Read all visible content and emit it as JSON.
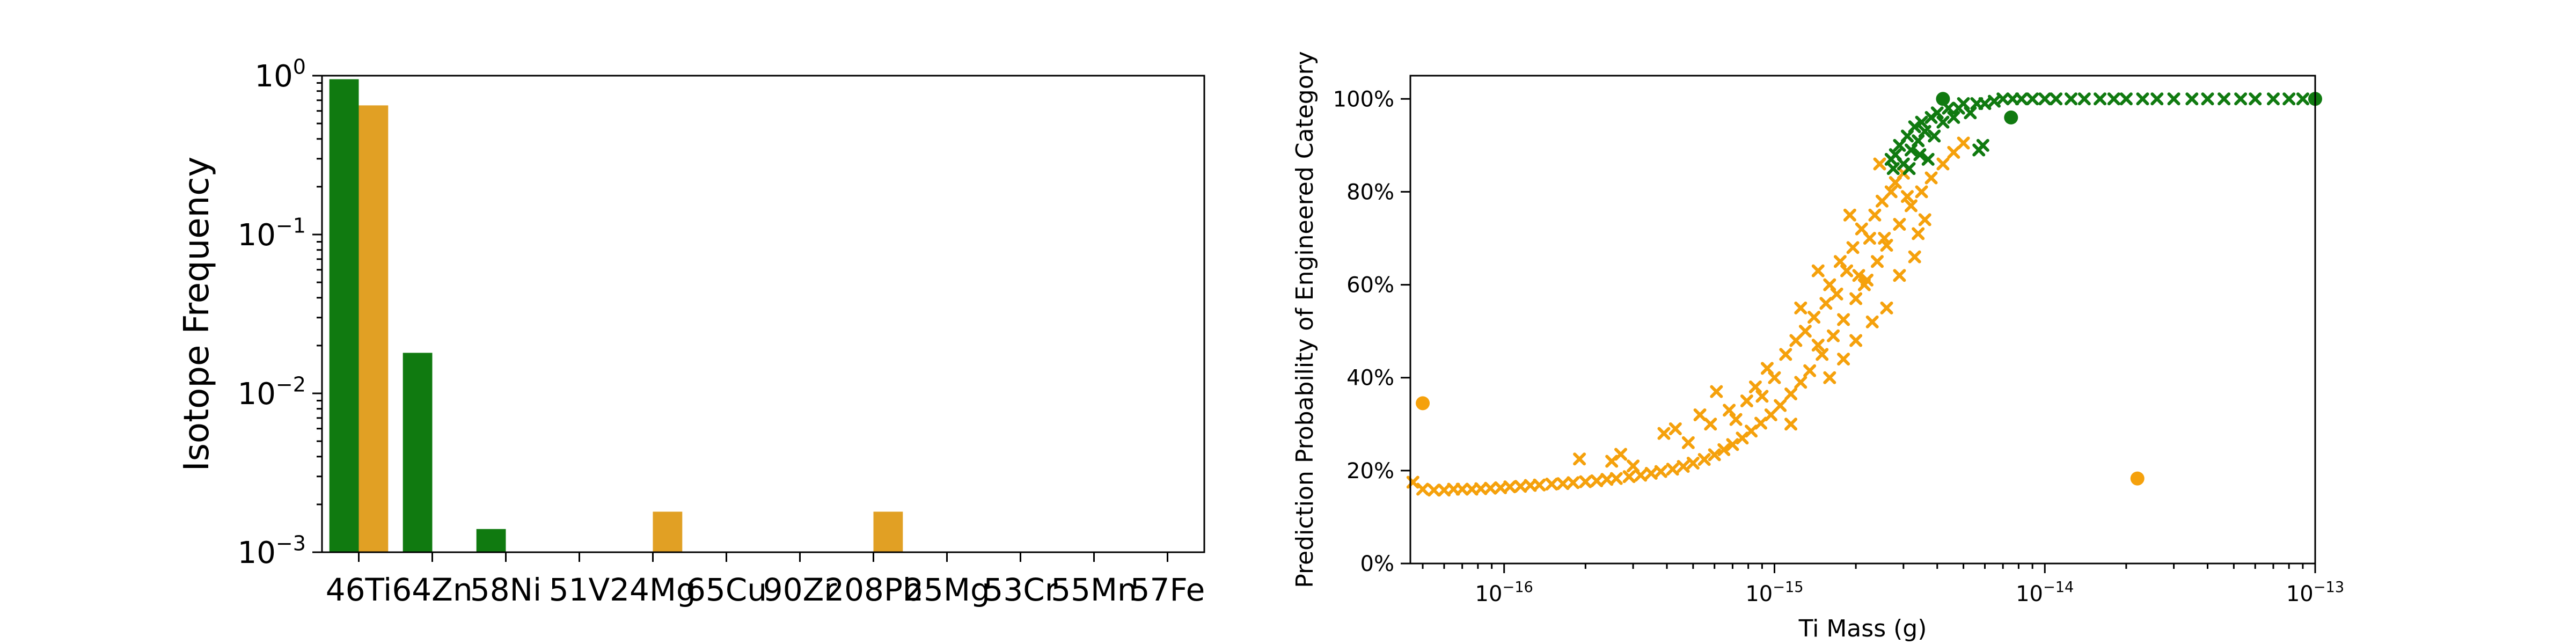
{
  "chart_data": [
    {
      "type": "bar",
      "ylabel": "Isotope Frequency",
      "yscale": "log",
      "ylim": [
        0.001,
        1
      ],
      "y_ticks": [
        {
          "value": 1,
          "base": "10",
          "exp": "0"
        },
        {
          "value": 0.1,
          "base": "10",
          "exp": "−1"
        },
        {
          "value": 0.01,
          "base": "10",
          "exp": "−2"
        },
        {
          "value": 0.001,
          "base": "10",
          "exp": "−3"
        }
      ],
      "categories": [
        "46Ti",
        "64Zn",
        "58Ni",
        "51V",
        "24Mg",
        "65Cu",
        "90Zr",
        "208Pb",
        "25Mg",
        "53Cr",
        "55Mn",
        "57Fe"
      ],
      "series": [
        {
          "color": "#107a10",
          "values": [
            0.95,
            0.018,
            0.0014,
            null,
            null,
            null,
            null,
            null,
            null,
            null,
            null,
            null
          ]
        },
        {
          "color": "#e1a024",
          "values": [
            0.65,
            null,
            null,
            null,
            0.0018,
            null,
            null,
            0.0018,
            null,
            null,
            null,
            null
          ]
        }
      ],
      "legend": "none",
      "grid": false
    },
    {
      "type": "scatter",
      "xlabel": "Ti Mass (g)",
      "ylabel": "Prediction Probability of Engineered Category",
      "xscale": "log",
      "xlim": [
        4.5e-17,
        1e-13
      ],
      "ylim": [
        0,
        1.05
      ],
      "x_ticks": [
        {
          "value": 1e-16,
          "base": "10",
          "exp": "−16"
        },
        {
          "value": 1e-15,
          "base": "10",
          "exp": "−15"
        },
        {
          "value": 1e-14,
          "base": "10",
          "exp": "−14"
        },
        {
          "value": 1e-13,
          "base": "10",
          "exp": "−13"
        }
      ],
      "y_ticks": [
        {
          "value": 0,
          "label": "0%"
        },
        {
          "value": 0.2,
          "label": "20%"
        },
        {
          "value": 0.4,
          "label": "40%"
        },
        {
          "value": 0.6,
          "label": "60%"
        },
        {
          "value": 0.8,
          "label": "80%"
        },
        {
          "value": 1.0,
          "label": "100%"
        }
      ],
      "series": [
        {
          "color": "#f5a10c",
          "marker": "x",
          "points": [
            [
              4.6e-17,
              0.175
            ],
            [
              5e-17,
              0.16
            ],
            [
              5.5e-17,
              0.158
            ],
            [
              6e-17,
              0.158
            ],
            [
              6.5e-17,
              0.16
            ],
            [
              7e-17,
              0.16
            ],
            [
              7.6e-17,
              0.16
            ],
            [
              8.2e-17,
              0.161
            ],
            [
              8.9e-17,
              0.162
            ],
            [
              9.7e-17,
              0.163
            ],
            [
              1.05e-16,
              0.165
            ],
            [
              1.15e-16,
              0.166
            ],
            [
              1.25e-16,
              0.168
            ],
            [
              1.35e-16,
              0.169
            ],
            [
              1.5e-16,
              0.171
            ],
            [
              1.65e-16,
              0.172
            ],
            [
              1.8e-16,
              0.174
            ],
            [
              2e-16,
              0.176
            ],
            [
              2.2e-16,
              0.178
            ],
            [
              2.4e-16,
              0.181
            ],
            [
              2.6e-16,
              0.183
            ],
            [
              2.9e-16,
              0.187
            ],
            [
              3.2e-16,
              0.19
            ],
            [
              3.5e-16,
              0.194
            ],
            [
              3.8e-16,
              0.198
            ],
            [
              4.2e-16,
              0.203
            ],
            [
              4.6e-16,
              0.209
            ],
            [
              5e-16,
              0.216
            ],
            [
              5.5e-16,
              0.224
            ],
            [
              6e-16,
              0.234
            ],
            [
              6.5e-16,
              0.245
            ],
            [
              7e-16,
              0.256
            ],
            [
              7.6e-16,
              0.27
            ],
            [
              8.2e-16,
              0.285
            ],
            [
              8.9e-16,
              0.302
            ],
            [
              9.7e-16,
              0.32
            ],
            [
              1.05e-15,
              0.34
            ],
            [
              1.15e-15,
              0.365
            ],
            [
              1.25e-15,
              0.39
            ],
            [
              1.35e-15,
              0.415
            ],
            [
              1.5e-15,
              0.45
            ],
            [
              1.65e-15,
              0.49
            ],
            [
              1.8e-15,
              0.525
            ],
            [
              2e-15,
              0.57
            ],
            [
              2.2e-15,
              0.61
            ],
            [
              2.4e-15,
              0.65
            ],
            [
              2.6e-15,
              0.685
            ],
            [
              2.9e-15,
              0.73
            ],
            [
              3.2e-15,
              0.77
            ],
            [
              3.5e-15,
              0.8
            ],
            [
              3.8e-15,
              0.83
            ],
            [
              4.2e-15,
              0.86
            ],
            [
              4.6e-15,
              0.885
            ],
            [
              5e-15,
              0.905
            ],
            [
              1.9e-16,
              0.225
            ],
            [
              2.7e-16,
              0.235
            ],
            [
              3e-16,
              0.21
            ],
            [
              2.5e-16,
              0.22
            ],
            [
              3.9e-16,
              0.28
            ],
            [
              4.3e-16,
              0.29
            ],
            [
              4.8e-16,
              0.26
            ],
            [
              5.3e-16,
              0.32
            ],
            [
              5.8e-16,
              0.3
            ],
            [
              6.1e-16,
              0.37
            ],
            [
              6.8e-16,
              0.33
            ],
            [
              7.2e-16,
              0.31
            ],
            [
              7.9e-16,
              0.35
            ],
            [
              8.5e-16,
              0.38
            ],
            [
              9e-16,
              0.36
            ],
            [
              9.4e-16,
              0.42
            ],
            [
              1e-15,
              0.4
            ],
            [
              1.1e-15,
              0.45
            ],
            [
              1.2e-15,
              0.48
            ],
            [
              1.3e-15,
              0.5
            ],
            [
              1.4e-15,
              0.53
            ],
            [
              1.45e-15,
              0.47
            ],
            [
              1.55e-15,
              0.56
            ],
            [
              1.6e-15,
              0.6
            ],
            [
              1.7e-15,
              0.58
            ],
            [
              1.75e-15,
              0.65
            ],
            [
              1.85e-15,
              0.63
            ],
            [
              1.95e-15,
              0.68
            ],
            [
              2.05e-15,
              0.62
            ],
            [
              2.1e-15,
              0.72
            ],
            [
              2.25e-15,
              0.7
            ],
            [
              2.35e-15,
              0.75
            ],
            [
              2.5e-15,
              0.78
            ],
            [
              2.7e-15,
              0.8
            ],
            [
              2.8e-15,
              0.82
            ],
            [
              3e-15,
              0.84
            ],
            [
              3.1e-15,
              0.79
            ],
            [
              2.9e-15,
              0.62
            ],
            [
              3.3e-15,
              0.66
            ],
            [
              2.6e-15,
              0.55
            ],
            [
              2.3e-15,
              0.52
            ],
            [
              2e-15,
              0.48
            ],
            [
              1.8e-15,
              0.44
            ],
            [
              1.6e-15,
              0.4
            ],
            [
              1.9e-15,
              0.75
            ],
            [
              2.15e-15,
              0.6
            ],
            [
              1.45e-15,
              0.63
            ],
            [
              1.25e-15,
              0.55
            ],
            [
              1.15e-15,
              0.3
            ],
            [
              2.55e-15,
              0.7
            ],
            [
              3.4e-15,
              0.71
            ],
            [
              3.6e-15,
              0.74
            ],
            [
              2.45e-15,
              0.86
            ]
          ]
        },
        {
          "color": "#f5a10c",
          "marker": "o",
          "points": [
            [
              5e-17,
              0.345
            ],
            [
              2.2e-14,
              0.183
            ]
          ]
        },
        {
          "color": "#107a10",
          "marker": "x",
          "points": [
            [
              2.7e-15,
              0.87
            ],
            [
              2.8e-15,
              0.88
            ],
            [
              2.9e-15,
              0.9
            ],
            [
              3e-15,
              0.86
            ],
            [
              3.1e-15,
              0.92
            ],
            [
              3.2e-15,
              0.89
            ],
            [
              3.3e-15,
              0.94
            ],
            [
              3.4e-15,
              0.91
            ],
            [
              3.5e-15,
              0.95
            ],
            [
              3.6e-15,
              0.93
            ],
            [
              3.7e-15,
              0.87
            ],
            [
              3.8e-15,
              0.96
            ],
            [
              3.9e-15,
              0.92
            ],
            [
              4e-15,
              0.97
            ],
            [
              4.2e-15,
              0.95
            ],
            [
              4.4e-15,
              0.98
            ],
            [
              4.6e-15,
              0.96
            ],
            [
              4.8e-15,
              0.98
            ],
            [
              5e-15,
              0.99
            ],
            [
              5.3e-15,
              0.97
            ],
            [
              5.6e-15,
              0.99
            ],
            [
              6e-15,
              0.99
            ],
            [
              6.5e-15,
              0.995
            ],
            [
              7e-15,
              1.0
            ],
            [
              7.6e-15,
              1.0
            ],
            [
              8.2e-15,
              1.0
            ],
            [
              9e-15,
              1.0
            ],
            [
              1e-14,
              1.0
            ],
            [
              1.1e-14,
              1.0
            ],
            [
              1.25e-14,
              1.0
            ],
            [
              1.4e-14,
              1.0
            ],
            [
              1.6e-14,
              1.0
            ],
            [
              1.8e-14,
              1.0
            ],
            [
              2e-14,
              1.0
            ],
            [
              2.3e-14,
              1.0
            ],
            [
              2.6e-14,
              1.0
            ],
            [
              3e-14,
              1.0
            ],
            [
              3.5e-14,
              1.0
            ],
            [
              4e-14,
              1.0
            ],
            [
              4.6e-14,
              1.0
            ],
            [
              5.3e-14,
              1.0
            ],
            [
              6e-14,
              1.0
            ],
            [
              7e-14,
              1.0
            ],
            [
              8e-14,
              1.0
            ],
            [
              9e-14,
              1.0
            ],
            [
              5.7e-15,
              0.89
            ],
            [
              5.9e-15,
              0.9
            ],
            [
              3.15e-15,
              0.85
            ],
            [
              3.45e-15,
              0.88
            ],
            [
              2.75e-15,
              0.85
            ]
          ]
        },
        {
          "color": "#107a10",
          "marker": "o",
          "points": [
            [
              4.2e-15,
              1.0
            ],
            [
              7.5e-15,
              0.96
            ],
            [
              1e-13,
              1.0
            ]
          ]
        }
      ],
      "legend": "none",
      "grid": false
    }
  ]
}
